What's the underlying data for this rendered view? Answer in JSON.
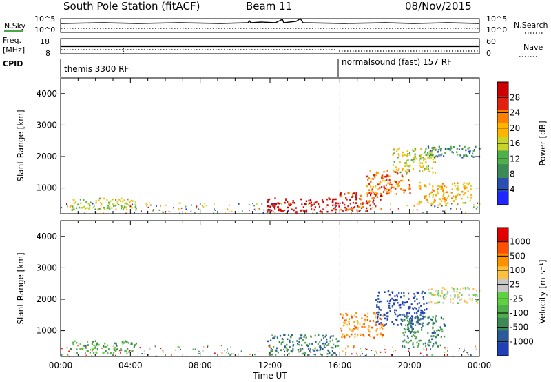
{
  "header": {
    "title": "South Pole Station (fitACF)",
    "beam": "Beam 11",
    "date": "08/Nov/2015"
  },
  "top_panels": {
    "nsky_label": "N.Sky",
    "nsky_tick_top": "10^5",
    "nsky_tick_bottom": "10^0",
    "nsearch_label": "N.Search",
    "freq_label": "Freq.",
    "freq_unit": "[MHz]",
    "freq_tick_top": "18",
    "freq_tick_bottom": "8",
    "nave_tick_top": "60",
    "nave_tick_bottom": "0",
    "nave_label": "Nave",
    "cpid_label": "CPID",
    "cpid_segments": [
      "themis 3300 RF",
      "normalsound (fast) 157 RF"
    ]
  },
  "chart_data": [
    {
      "type": "heatmap",
      "title": "",
      "xlabel": "",
      "ylabel": "Slant Range [km]",
      "xlim": [
        0,
        24
      ],
      "ylim": [
        180,
        4500
      ],
      "yticks": [
        "1000",
        "2000",
        "3000",
        "4000"
      ],
      "colorbar": {
        "label": "Power [dB]",
        "ticks": [
          "4",
          "8",
          "12",
          "16",
          "20",
          "24",
          "28"
        ],
        "colors": [
          "#1f26ff",
          "#2a4fb0",
          "#3b8a55",
          "#4fb04a",
          "#c8d42a",
          "#ffb400",
          "#ff8000",
          "#e02010",
          "#cc0000"
        ]
      },
      "regions": [
        {
          "t0": 0.5,
          "t1": 4.3,
          "r0": 300,
          "r1": 700,
          "level": 4
        },
        {
          "t0": 11.8,
          "t1": 15.9,
          "r0": 250,
          "r1": 700,
          "level": 8
        },
        {
          "t0": 15.9,
          "t1": 18.5,
          "r0": 300,
          "r1": 900,
          "level": 7
        },
        {
          "t0": 17.5,
          "t1": 20.0,
          "r0": 800,
          "r1": 1600,
          "level": 6
        },
        {
          "t0": 19.0,
          "t1": 21.5,
          "r0": 1500,
          "r1": 2300,
          "level": 4
        },
        {
          "t0": 20.5,
          "t1": 23.5,
          "r0": 500,
          "r1": 1200,
          "level": 5
        },
        {
          "t0": 21.0,
          "t1": 24.0,
          "r0": 2000,
          "r1": 2400,
          "level": 2
        }
      ]
    },
    {
      "type": "heatmap",
      "title": "",
      "xlabel": "Time UT",
      "ylabel": "Slant Range [km]",
      "xlim": [
        0,
        24
      ],
      "ylim": [
        180,
        4500
      ],
      "xticks": [
        "00:00",
        "04:00",
        "08:00",
        "12:00",
        "16:00",
        "20:00",
        "00:00"
      ],
      "yticks": [
        "1000",
        "2000",
        "3000",
        "4000"
      ],
      "colorbar": {
        "label": "Velocity [m s⁻¹]",
        "ticks": [
          "1000",
          "500",
          "100",
          "25",
          "-25",
          "-100",
          "-500",
          "-1000"
        ],
        "colors": [
          "#1f3fb8",
          "#2a5a9a",
          "#3b8a55",
          "#4fb04a",
          "#5fd040",
          "#c8c8c8",
          "#ffc040",
          "#ff9000",
          "#ff5000",
          "#e00000"
        ]
      },
      "regions": [
        {
          "t0": 0.5,
          "t1": 4.3,
          "r0": 300,
          "r1": 700,
          "level": 3
        },
        {
          "t0": 11.8,
          "t1": 15.9,
          "r0": 250,
          "r1": 900,
          "level": 2
        },
        {
          "t0": 16.0,
          "t1": 18.5,
          "r0": 800,
          "r1": 1600,
          "level": 7
        },
        {
          "t0": 18.0,
          "t1": 21.0,
          "r0": 1200,
          "r1": 2300,
          "level": 0
        },
        {
          "t0": 19.5,
          "t1": 22.0,
          "r0": 500,
          "r1": 1500,
          "level": 2
        },
        {
          "t0": 21.0,
          "t1": 24.0,
          "r0": 1900,
          "r1": 2400,
          "level": 5
        }
      ]
    }
  ]
}
